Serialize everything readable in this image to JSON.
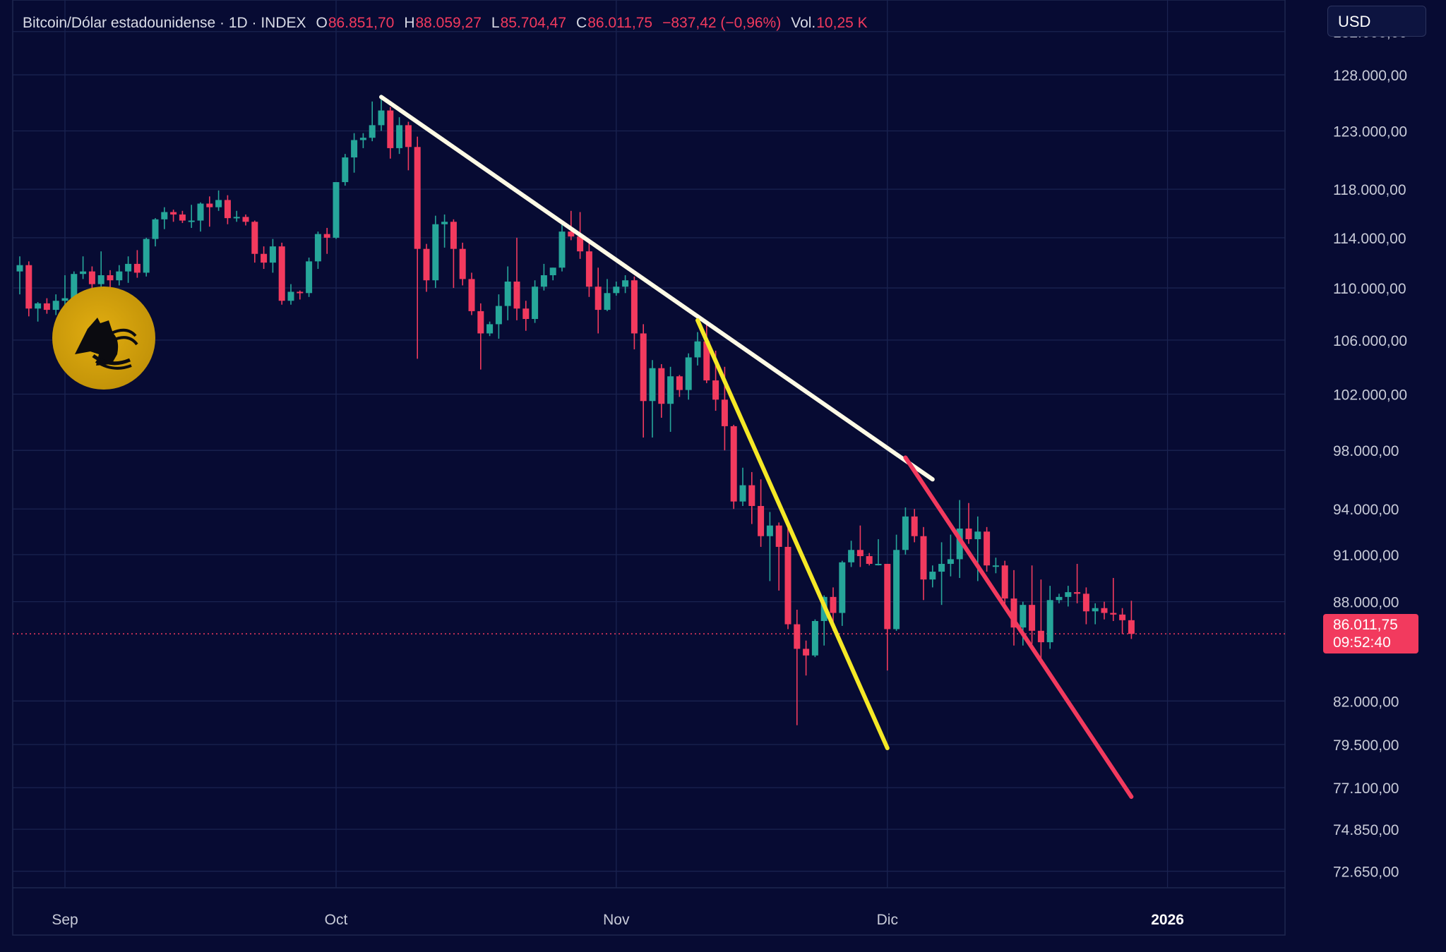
{
  "header": {
    "symbol": "Bitcoin/Dólar estadounidense · 1D · INDEX",
    "open_label": "O",
    "open": "86.851,70",
    "high_label": "H",
    "high": "88.059,27",
    "low_label": "L",
    "low": "85.704,47",
    "close_label": "C",
    "close": "86.011,75",
    "change": "−837,42 (−0,96%)",
    "vol_label": "Vol.",
    "volume": "10,25 K"
  },
  "currency": "USD",
  "last_price": {
    "price": "86.011,75",
    "countdown": "09:52:40"
  },
  "colors": {
    "background": "#070b33",
    "up": "#26a69a",
    "down": "#f23a5e",
    "trendline_white": "#fffbe6",
    "trendline_yellow": "#f5e826",
    "trendline_red": "#f23a5e",
    "grid": "#1a2350"
  },
  "icons": {
    "logo": "anubis-jackal-emblem-icon"
  },
  "chart_data": {
    "type": "candlestick",
    "price_scale": "log",
    "ylim": [
      71800,
      135000
    ],
    "y_tick_labels": [
      "132.000,00",
      "128.000,00",
      "123.000,00",
      "118.000,00",
      "114.000,00",
      "110.000,00",
      "106.000,00",
      "102.000,00",
      "98.000,00",
      "94.000,00",
      "91.000,00",
      "88.000,00",
      "82.000,00",
      "79.500,00",
      "77.100,00",
      "74.850,00",
      "72.650,00"
    ],
    "y_tick_values": [
      132000,
      128000,
      123000,
      118000,
      114000,
      110000,
      106000,
      102000,
      98000,
      94000,
      91000,
      88000,
      82000,
      79500,
      77100,
      74850,
      72650
    ],
    "x_tick_labels": [
      "Sep",
      "Oct",
      "Nov",
      "Dic",
      "2026"
    ],
    "x_tick_dates": [
      "2025-09-01",
      "2025-10-01",
      "2025-11-01",
      "2025-12-01",
      "2026-01-01"
    ],
    "xlim": [
      "2025-08-27",
      "2026-01-14"
    ],
    "grid": true,
    "last_close": 86011.75,
    "candles": [
      {
        "date": "2025-08-27",
        "o": 111300,
        "h": 112500,
        "l": 109500,
        "c": 111800
      },
      {
        "date": "2025-08-28",
        "o": 111800,
        "h": 112100,
        "l": 107800,
        "c": 108400
      },
      {
        "date": "2025-08-29",
        "o": 108400,
        "h": 108900,
        "l": 107400,
        "c": 108800
      },
      {
        "date": "2025-08-30",
        "o": 108800,
        "h": 109200,
        "l": 108000,
        "c": 108300
      },
      {
        "date": "2025-08-31",
        "o": 108300,
        "h": 109500,
        "l": 107900,
        "c": 109000
      },
      {
        "date": "2025-09-01",
        "o": 109000,
        "h": 111000,
        "l": 108500,
        "c": 109200
      },
      {
        "date": "2025-09-02",
        "o": 109200,
        "h": 111300,
        "l": 108700,
        "c": 111100
      },
      {
        "date": "2025-09-03",
        "o": 111100,
        "h": 112500,
        "l": 110700,
        "c": 111300
      },
      {
        "date": "2025-09-04",
        "o": 111300,
        "h": 111700,
        "l": 109500,
        "c": 110300
      },
      {
        "date": "2025-09-05",
        "o": 110300,
        "h": 112900,
        "l": 110000,
        "c": 111000
      },
      {
        "date": "2025-09-06",
        "o": 111000,
        "h": 111400,
        "l": 109800,
        "c": 110600
      },
      {
        "date": "2025-09-07",
        "o": 110600,
        "h": 111800,
        "l": 110200,
        "c": 111300
      },
      {
        "date": "2025-09-08",
        "o": 111300,
        "h": 112500,
        "l": 110400,
        "c": 111900
      },
      {
        "date": "2025-09-09",
        "o": 111900,
        "h": 113000,
        "l": 110800,
        "c": 111200
      },
      {
        "date": "2025-09-10",
        "o": 111200,
        "h": 114000,
        "l": 110900,
        "c": 113900
      },
      {
        "date": "2025-09-11",
        "o": 113900,
        "h": 115600,
        "l": 113300,
        "c": 115500
      },
      {
        "date": "2025-09-12",
        "o": 115500,
        "h": 116500,
        "l": 114700,
        "c": 116100
      },
      {
        "date": "2025-09-13",
        "o": 116100,
        "h": 116300,
        "l": 115300,
        "c": 115900
      },
      {
        "date": "2025-09-14",
        "o": 115900,
        "h": 116200,
        "l": 115200,
        "c": 115400
      },
      {
        "date": "2025-09-15",
        "o": 115400,
        "h": 116700,
        "l": 114800,
        "c": 115400
      },
      {
        "date": "2025-09-16",
        "o": 115400,
        "h": 116900,
        "l": 114500,
        "c": 116800
      },
      {
        "date": "2025-09-17",
        "o": 116800,
        "h": 117400,
        "l": 114900,
        "c": 116500
      },
      {
        "date": "2025-09-18",
        "o": 116500,
        "h": 117900,
        "l": 116200,
        "c": 117100
      },
      {
        "date": "2025-09-19",
        "o": 117100,
        "h": 117500,
        "l": 115100,
        "c": 115600
      },
      {
        "date": "2025-09-20",
        "o": 115600,
        "h": 116200,
        "l": 115300,
        "c": 115700
      },
      {
        "date": "2025-09-21",
        "o": 115700,
        "h": 115900,
        "l": 115000,
        "c": 115300
      },
      {
        "date": "2025-09-22",
        "o": 115300,
        "h": 115400,
        "l": 112000,
        "c": 112700
      },
      {
        "date": "2025-09-23",
        "o": 112700,
        "h": 113300,
        "l": 111500,
        "c": 112000
      },
      {
        "date": "2025-09-24",
        "o": 112000,
        "h": 113900,
        "l": 111200,
        "c": 113300
      },
      {
        "date": "2025-09-25",
        "o": 113300,
        "h": 113600,
        "l": 108700,
        "c": 109000
      },
      {
        "date": "2025-09-26",
        "o": 109000,
        "h": 110300,
        "l": 108700,
        "c": 109700
      },
      {
        "date": "2025-09-27",
        "o": 109700,
        "h": 109800,
        "l": 109100,
        "c": 109600
      },
      {
        "date": "2025-09-28",
        "o": 109600,
        "h": 112400,
        "l": 109300,
        "c": 112100
      },
      {
        "date": "2025-09-29",
        "o": 112100,
        "h": 114500,
        "l": 111500,
        "c": 114300
      },
      {
        "date": "2025-09-30",
        "o": 114300,
        "h": 114800,
        "l": 112700,
        "c": 114000
      },
      {
        "date": "2025-10-01",
        "o": 114000,
        "h": 118600,
        "l": 113900,
        "c": 118600
      },
      {
        "date": "2025-10-02",
        "o": 118600,
        "h": 121000,
        "l": 118300,
        "c": 120700
      },
      {
        "date": "2025-10-03",
        "o": 120700,
        "h": 122800,
        "l": 119400,
        "c": 122200
      },
      {
        "date": "2025-10-04",
        "o": 122200,
        "h": 122800,
        "l": 121500,
        "c": 122400
      },
      {
        "date": "2025-10-05",
        "o": 122400,
        "h": 125600,
        "l": 122100,
        "c": 123500
      },
      {
        "date": "2025-10-06",
        "o": 123500,
        "h": 126200,
        "l": 123000,
        "c": 124800
      },
      {
        "date": "2025-10-07",
        "o": 124800,
        "h": 125100,
        "l": 120600,
        "c": 121500
      },
      {
        "date": "2025-10-08",
        "o": 121500,
        "h": 124200,
        "l": 121000,
        "c": 123500
      },
      {
        "date": "2025-10-09",
        "o": 123500,
        "h": 123800,
        "l": 119600,
        "c": 121600
      },
      {
        "date": "2025-10-10",
        "o": 121600,
        "h": 122500,
        "l": 104600,
        "c": 113100
      },
      {
        "date": "2025-10-11",
        "o": 113100,
        "h": 113500,
        "l": 109700,
        "c": 110600
      },
      {
        "date": "2025-10-12",
        "o": 110600,
        "h": 115800,
        "l": 110000,
        "c": 115100
      },
      {
        "date": "2025-10-13",
        "o": 115100,
        "h": 115900,
        "l": 113200,
        "c": 115300
      },
      {
        "date": "2025-10-14",
        "o": 115300,
        "h": 115500,
        "l": 110000,
        "c": 113100
      },
      {
        "date": "2025-10-15",
        "o": 113100,
        "h": 113600,
        "l": 110200,
        "c": 110700
      },
      {
        "date": "2025-10-16",
        "o": 110700,
        "h": 111200,
        "l": 107900,
        "c": 108200
      },
      {
        "date": "2025-10-17",
        "o": 108200,
        "h": 108800,
        "l": 103800,
        "c": 106500
      },
      {
        "date": "2025-10-18",
        "o": 106500,
        "h": 107400,
        "l": 106300,
        "c": 107200
      },
      {
        "date": "2025-10-19",
        "o": 107200,
        "h": 109500,
        "l": 106100,
        "c": 108600
      },
      {
        "date": "2025-10-20",
        "o": 108600,
        "h": 111700,
        "l": 107500,
        "c": 110500
      },
      {
        "date": "2025-10-21",
        "o": 110500,
        "h": 114000,
        "l": 107500,
        "c": 108400
      },
      {
        "date": "2025-10-22",
        "o": 108400,
        "h": 109000,
        "l": 106700,
        "c": 107600
      },
      {
        "date": "2025-10-23",
        "o": 107600,
        "h": 110600,
        "l": 107300,
        "c": 110100
      },
      {
        "date": "2025-10-24",
        "o": 110100,
        "h": 111900,
        "l": 109800,
        "c": 111000
      },
      {
        "date": "2025-10-25",
        "o": 111000,
        "h": 111600,
        "l": 110600,
        "c": 111600
      },
      {
        "date": "2025-10-26",
        "o": 111600,
        "h": 115300,
        "l": 111300,
        "c": 114500
      },
      {
        "date": "2025-10-27",
        "o": 114500,
        "h": 116200,
        "l": 113800,
        "c": 114100
      },
      {
        "date": "2025-10-28",
        "o": 114100,
        "h": 116100,
        "l": 112300,
        "c": 112900
      },
      {
        "date": "2025-10-29",
        "o": 112900,
        "h": 113600,
        "l": 109300,
        "c": 110100
      },
      {
        "date": "2025-10-30",
        "o": 110100,
        "h": 111600,
        "l": 106500,
        "c": 108300
      },
      {
        "date": "2025-10-31",
        "o": 108300,
        "h": 110700,
        "l": 108200,
        "c": 109600
      },
      {
        "date": "2025-11-01",
        "o": 109600,
        "h": 110500,
        "l": 109400,
        "c": 110100
      },
      {
        "date": "2025-11-02",
        "o": 110100,
        "h": 111000,
        "l": 109600,
        "c": 110600
      },
      {
        "date": "2025-11-03",
        "o": 110600,
        "h": 110900,
        "l": 105300,
        "c": 106500
      },
      {
        "date": "2025-11-04",
        "o": 106500,
        "h": 107200,
        "l": 98900,
        "c": 101500
      },
      {
        "date": "2025-11-05",
        "o": 101500,
        "h": 104500,
        "l": 98900,
        "c": 103900
      },
      {
        "date": "2025-11-06",
        "o": 103900,
        "h": 104200,
        "l": 100300,
        "c": 101300
      },
      {
        "date": "2025-11-07",
        "o": 101300,
        "h": 104000,
        "l": 99300,
        "c": 103300
      },
      {
        "date": "2025-11-08",
        "o": 103300,
        "h": 103400,
        "l": 101800,
        "c": 102300
      },
      {
        "date": "2025-11-09",
        "o": 102300,
        "h": 105000,
        "l": 101600,
        "c": 104700
      },
      {
        "date": "2025-11-10",
        "o": 104700,
        "h": 106600,
        "l": 104100,
        "c": 105900
      },
      {
        "date": "2025-11-11",
        "o": 105900,
        "h": 107400,
        "l": 102800,
        "c": 103000
      },
      {
        "date": "2025-11-12",
        "o": 103000,
        "h": 105200,
        "l": 100800,
        "c": 101600
      },
      {
        "date": "2025-11-13",
        "o": 101600,
        "h": 104000,
        "l": 98000,
        "c": 99700
      },
      {
        "date": "2025-11-14",
        "o": 99700,
        "h": 99800,
        "l": 94000,
        "c": 94500
      },
      {
        "date": "2025-11-15",
        "o": 94500,
        "h": 96800,
        "l": 94200,
        "c": 95600
      },
      {
        "date": "2025-11-16",
        "o": 95600,
        "h": 96500,
        "l": 93000,
        "c": 94200
      },
      {
        "date": "2025-11-17",
        "o": 94200,
        "h": 96000,
        "l": 91500,
        "c": 92200
      },
      {
        "date": "2025-11-18",
        "o": 92200,
        "h": 93800,
        "l": 89300,
        "c": 92900
      },
      {
        "date": "2025-11-19",
        "o": 92900,
        "h": 93100,
        "l": 88700,
        "c": 91500
      },
      {
        "date": "2025-11-20",
        "o": 91500,
        "h": 93100,
        "l": 86300,
        "c": 86600
      },
      {
        "date": "2025-11-21",
        "o": 86600,
        "h": 87500,
        "l": 80600,
        "c": 85100
      },
      {
        "date": "2025-11-22",
        "o": 85100,
        "h": 85600,
        "l": 83500,
        "c": 84700
      },
      {
        "date": "2025-11-23",
        "o": 84700,
        "h": 86900,
        "l": 84600,
        "c": 86800
      },
      {
        "date": "2025-11-24",
        "o": 86800,
        "h": 88400,
        "l": 85300,
        "c": 88300
      },
      {
        "date": "2025-11-25",
        "o": 88300,
        "h": 88900,
        "l": 86200,
        "c": 87300
      },
      {
        "date": "2025-11-26",
        "o": 87300,
        "h": 90600,
        "l": 86500,
        "c": 90500
      },
      {
        "date": "2025-11-27",
        "o": 90500,
        "h": 91900,
        "l": 90200,
        "c": 91300
      },
      {
        "date": "2025-11-28",
        "o": 91300,
        "h": 92900,
        "l": 90200,
        "c": 90900
      },
      {
        "date": "2025-11-29",
        "o": 90900,
        "h": 91100,
        "l": 90300,
        "c": 90400
      },
      {
        "date": "2025-11-30",
        "o": 90400,
        "h": 92000,
        "l": 90300,
        "c": 90400
      },
      {
        "date": "2025-12-01",
        "o": 90400,
        "h": 90400,
        "l": 83800,
        "c": 86300
      },
      {
        "date": "2025-12-02",
        "o": 86300,
        "h": 92300,
        "l": 86200,
        "c": 91300
      },
      {
        "date": "2025-12-03",
        "o": 91300,
        "h": 94100,
        "l": 91000,
        "c": 93500
      },
      {
        "date": "2025-12-04",
        "o": 93500,
        "h": 94000,
        "l": 91800,
        "c": 92200
      },
      {
        "date": "2025-12-05",
        "o": 92200,
        "h": 92800,
        "l": 88100,
        "c": 89400
      },
      {
        "date": "2025-12-06",
        "o": 89400,
        "h": 90300,
        "l": 88900,
        "c": 89900
      },
      {
        "date": "2025-12-07",
        "o": 89900,
        "h": 91800,
        "l": 87800,
        "c": 90400
      },
      {
        "date": "2025-12-08",
        "o": 90400,
        "h": 92300,
        "l": 89600,
        "c": 90700
      },
      {
        "date": "2025-12-09",
        "o": 90700,
        "h": 94600,
        "l": 89500,
        "c": 92700
      },
      {
        "date": "2025-12-10",
        "o": 92700,
        "h": 94400,
        "l": 91700,
        "c": 92000
      },
      {
        "date": "2025-12-11",
        "o": 92000,
        "h": 93500,
        "l": 89300,
        "c": 92500
      },
      {
        "date": "2025-12-12",
        "o": 92500,
        "h": 92800,
        "l": 89900,
        "c": 90300
      },
      {
        "date": "2025-12-13",
        "o": 90300,
        "h": 90800,
        "l": 89800,
        "c": 90300
      },
      {
        "date": "2025-12-14",
        "o": 90300,
        "h": 90600,
        "l": 87600,
        "c": 88200
      },
      {
        "date": "2025-12-15",
        "o": 88200,
        "h": 90000,
        "l": 85300,
        "c": 86400
      },
      {
        "date": "2025-12-16",
        "o": 86400,
        "h": 88000,
        "l": 85300,
        "c": 87800
      },
      {
        "date": "2025-12-17",
        "o": 87800,
        "h": 90300,
        "l": 85400,
        "c": 86200
      },
      {
        "date": "2025-12-18",
        "o": 86200,
        "h": 89400,
        "l": 84400,
        "c": 85500
      },
      {
        "date": "2025-12-19",
        "o": 85500,
        "h": 89000,
        "l": 85100,
        "c": 88100
      },
      {
        "date": "2025-12-20",
        "o": 88100,
        "h": 88500,
        "l": 87900,
        "c": 88300
      },
      {
        "date": "2025-12-21",
        "o": 88300,
        "h": 89000,
        "l": 87700,
        "c": 88600
      },
      {
        "date": "2025-12-22",
        "o": 88600,
        "h": 90400,
        "l": 87900,
        "c": 88500
      },
      {
        "date": "2025-12-23",
        "o": 88500,
        "h": 88900,
        "l": 86600,
        "c": 87400
      },
      {
        "date": "2025-12-24",
        "o": 87400,
        "h": 87900,
        "l": 86600,
        "c": 87600
      },
      {
        "date": "2025-12-25",
        "o": 87600,
        "h": 88000,
        "l": 86900,
        "c": 87300
      },
      {
        "date": "2025-12-26",
        "o": 87300,
        "h": 89500,
        "l": 86800,
        "c": 87200
      },
      {
        "date": "2025-12-27",
        "o": 87200,
        "h": 87600,
        "l": 86000,
        "c": 86850
      },
      {
        "date": "2025-12-28",
        "o": 86850,
        "h": 88060,
        "l": 85700,
        "c": 86010
      }
    ],
    "trendlines": [
      {
        "color": "white",
        "from": {
          "date": "2025-10-06",
          "price": 126000
        },
        "to": {
          "date": "2025-12-06",
          "price": 96000
        }
      },
      {
        "color": "yellow",
        "from": {
          "date": "2025-11-10",
          "price": 107500
        },
        "to": {
          "date": "2025-12-01",
          "price": 79300
        }
      },
      {
        "color": "red",
        "from": {
          "date": "2025-12-03",
          "price": 97500
        },
        "to": {
          "date": "2025-12-28",
          "price": 76600
        }
      }
    ]
  }
}
